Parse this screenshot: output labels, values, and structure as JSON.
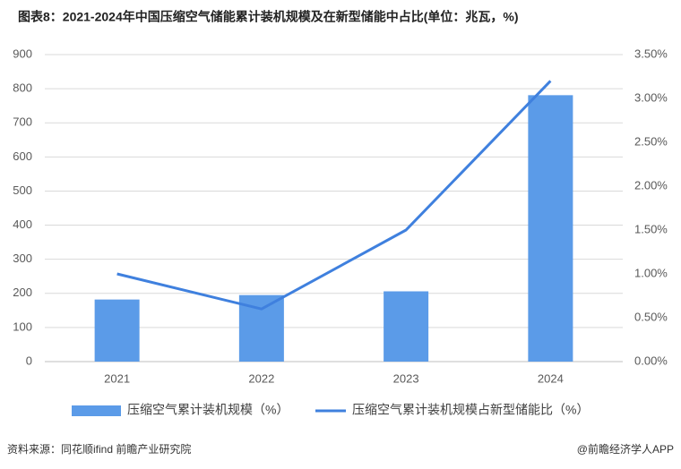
{
  "chart_data": {
    "type": "bar",
    "title": "图表8：2021-2024年中国压缩空气储能累计装机规模及在新型储能中占比(单位：兆瓦，%)",
    "categories": [
      "2021",
      "2022",
      "2023",
      "2024"
    ],
    "series": [
      {
        "name": "压缩空气累计装机规模（%）",
        "color": "#5b9be8",
        "values": [
          182,
          195,
          206,
          781
        ]
      },
      {
        "name": "压缩空气累计装机规模占新型储能比（%）",
        "color": "#3f80de",
        "type": "line",
        "axis": "y2",
        "values": [
          1.0,
          0.6,
          1.5,
          3.2
        ]
      }
    ],
    "ylim": [
      0,
      900
    ],
    "yticks": [
      0,
      100,
      200,
      300,
      400,
      500,
      600,
      700,
      800,
      900
    ],
    "y2lim": [
      0,
      3.5
    ],
    "y2ticks": [
      {
        "value": 0,
        "label": "0.00%"
      },
      {
        "value": 0.5,
        "label": "0.50%"
      },
      {
        "value": 1,
        "label": "1.00%"
      },
      {
        "value": 1.5,
        "label": "1.50%"
      },
      {
        "value": 2,
        "label": "2.00%"
      },
      {
        "value": 2.5,
        "label": "2.50%"
      },
      {
        "value": 3,
        "label": "3.00%"
      },
      {
        "value": 3.5,
        "label": "3.50%"
      }
    ],
    "grid": true,
    "source": "资料来源：同花顺ifind 前瞻产业研究院",
    "credit": "@前瞻经济学人APP"
  }
}
